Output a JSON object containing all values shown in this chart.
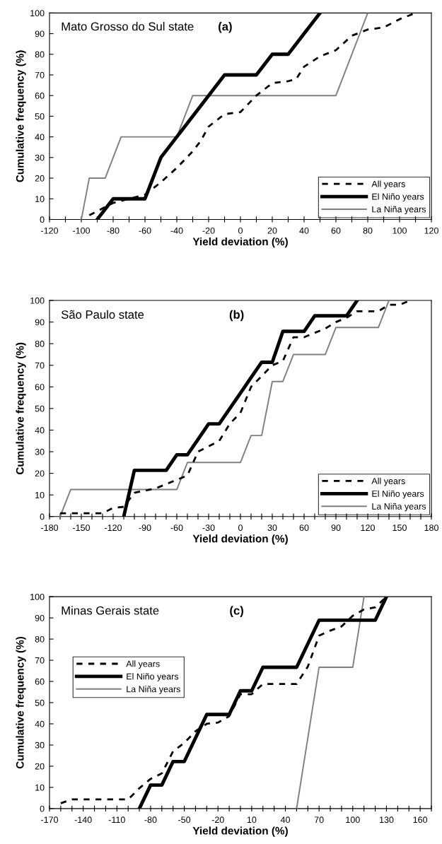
{
  "chart_data": [
    {
      "type": "line",
      "title": "Mato Grosso do Sul state",
      "annotations": [
        "(a)"
      ],
      "xlabel": "Yield deviation (%)",
      "ylabel": "Cumulative frequency (%)",
      "xlim": [
        -120,
        120
      ],
      "xticks": [
        -120,
        {
          "value": -110,
          "label": null
        },
        -100,
        {
          "value": -90,
          "label": null
        },
        -80,
        {
          "value": -70,
          "label": null
        },
        -60,
        {
          "value": -50,
          "label": null
        },
        -40,
        {
          "value": -30,
          "label": null
        },
        -20,
        {
          "value": -10,
          "label": null
        },
        0,
        {
          "value": 10,
          "label": null
        },
        20,
        {
          "value": 30,
          "label": null
        },
        40,
        {
          "value": 50,
          "label": null
        },
        60,
        {
          "value": 70,
          "label": null
        },
        80,
        {
          "value": 90,
          "label": null
        },
        100,
        {
          "value": 110,
          "label": null
        },
        120
      ],
      "ylim": [
        0,
        100
      ],
      "yticks": [
        0,
        10,
        20,
        30,
        40,
        50,
        60,
        70,
        80,
        90,
        100
      ],
      "grid": false,
      "legend": "bottom right",
      "marker": "none",
      "series": [
        {
          "name": "All years",
          "color": "#000000",
          "line_style": "dashed",
          "x": [
            -95,
            -80,
            -60,
            -50,
            -40,
            -30,
            -25,
            -20,
            -10,
            0,
            10,
            20,
            30,
            35,
            40,
            50,
            60,
            70,
            80,
            90,
            100,
            110
          ],
          "values": [
            2,
            8,
            12,
            18,
            25,
            33,
            38,
            45,
            51,
            52,
            60,
            66,
            67,
            68,
            74,
            79,
            82,
            89,
            92,
            93,
            97,
            100
          ]
        },
        {
          "name": "El Niño years",
          "color": "#000000",
          "line_style": "solid",
          "x": [
            -90,
            -80,
            -60,
            -50,
            -40,
            -10,
            10,
            20,
            30,
            40,
            50
          ],
          "values": [
            0,
            10,
            10,
            30,
            40,
            70,
            70,
            80,
            80,
            90,
            100
          ]
        },
        {
          "name": "La Niña years",
          "color": "#808080",
          "line_style": "solid",
          "x": [
            -100,
            -95,
            -85,
            -75,
            -40,
            -30,
            60,
            70,
            80
          ],
          "values": [
            0,
            20,
            20,
            40,
            40,
            60,
            60,
            80,
            100
          ]
        }
      ]
    },
    {
      "type": "line",
      "title": "São Paulo state",
      "annotations": [
        "(b)"
      ],
      "xlabel": "Yield deviation (%)",
      "ylabel": "Cumulative frequency (%)",
      "xlim": [
        -180,
        180
      ],
      "xticks": [
        -180,
        {
          "value": -170,
          "label": null
        },
        {
          "value": -160,
          "label": null
        },
        -150,
        {
          "value": -140,
          "label": null
        },
        {
          "value": -130,
          "label": null
        },
        -120,
        {
          "value": -110,
          "label": null
        },
        {
          "value": -100,
          "label": null
        },
        -90,
        {
          "value": -80,
          "label": null
        },
        {
          "value": -70,
          "label": null
        },
        -60,
        {
          "value": -50,
          "label": null
        },
        {
          "value": -40,
          "label": null
        },
        -30,
        {
          "value": -20,
          "label": null
        },
        {
          "value": -10,
          "label": null
        },
        0,
        {
          "value": 10,
          "label": null
        },
        {
          "value": 20,
          "label": null
        },
        30,
        {
          "value": 40,
          "label": null
        },
        {
          "value": 50,
          "label": null
        },
        60,
        {
          "value": 70,
          "label": null
        },
        {
          "value": 80,
          "label": null
        },
        90,
        {
          "value": 100,
          "label": null
        },
        {
          "value": 110,
          "label": null
        },
        120,
        {
          "value": 130,
          "label": null
        },
        {
          "value": 140,
          "label": null
        },
        150,
        {
          "value": 160,
          "label": null
        },
        {
          "value": 170,
          "label": null
        },
        180
      ],
      "ylim": [
        0,
        100
      ],
      "yticks": [
        0,
        10,
        20,
        30,
        40,
        50,
        60,
        70,
        80,
        90,
        100
      ],
      "grid": false,
      "legend": "bottom right",
      "marker": "none",
      "series": [
        {
          "name": "All years",
          "color": "#000000",
          "line_style": "dashed",
          "x": [
            -170,
            -130,
            -120,
            -110,
            -100,
            -80,
            -70,
            -60,
            -50,
            -40,
            -20,
            -10,
            0,
            10,
            20,
            30,
            40,
            50,
            60,
            80,
            90,
            100,
            110,
            130,
            140,
            150,
            160
          ],
          "values": [
            1.5,
            1.5,
            4,
            4.5,
            11,
            13,
            15,
            17,
            19,
            30,
            35,
            43,
            48,
            60,
            65,
            70,
            72,
            83,
            83,
            87,
            90,
            92,
            95,
            95,
            98,
            98,
            100
          ]
        },
        {
          "name": "El Niño years",
          "color": "#000000",
          "line_style": "solid",
          "x": [
            -110,
            -100,
            -70,
            -60,
            -50,
            -40,
            -30,
            -20,
            -10,
            0,
            10,
            20,
            30,
            40,
            60,
            70,
            100,
            110
          ],
          "values": [
            0,
            21.4,
            21.4,
            28.6,
            28.6,
            35.7,
            42.9,
            42.9,
            50,
            57.1,
            64.3,
            71.4,
            71.4,
            85.7,
            85.7,
            92.9,
            92.9,
            100
          ]
        },
        {
          "name": "La Niña years",
          "color": "#808080",
          "line_style": "solid",
          "x": [
            -170,
            -160,
            -60,
            -50,
            0,
            10,
            20,
            30,
            40,
            50,
            80,
            90,
            130,
            140
          ],
          "values": [
            0,
            12.5,
            12.5,
            25,
            25,
            37.5,
            37.5,
            62.5,
            62.5,
            75,
            75,
            87.5,
            87.5,
            100
          ]
        }
      ]
    },
    {
      "type": "line",
      "title": "Minas Gerais state",
      "annotations": [
        "(c)"
      ],
      "xlabel": "Yield deviation (%)",
      "ylabel": "Cumulative frequency (%)",
      "xlim": [
        -170,
        170
      ],
      "xticks": [
        -170,
        {
          "value": -160,
          "label": null
        },
        {
          "value": -150,
          "label": null
        },
        -140,
        {
          "value": -130,
          "label": null
        },
        {
          "value": -120,
          "label": null
        },
        -110,
        {
          "value": -100,
          "label": null
        },
        {
          "value": -90,
          "label": null
        },
        -80,
        {
          "value": -70,
          "label": null
        },
        {
          "value": -60,
          "label": null
        },
        -50,
        {
          "value": -40,
          "label": null
        },
        {
          "value": -30,
          "label": null
        },
        -20,
        {
          "value": -10,
          "label": null
        },
        {
          "value": 0,
          "label": null
        },
        10,
        {
          "value": 20,
          "label": null
        },
        {
          "value": 30,
          "label": null
        },
        40,
        {
          "value": 50,
          "label": null
        },
        {
          "value": 60,
          "label": null
        },
        70,
        {
          "value": 80,
          "label": null
        },
        {
          "value": 90,
          "label": null
        },
        100,
        {
          "value": 110,
          "label": null
        },
        {
          "value": 120,
          "label": null
        },
        130,
        {
          "value": 140,
          "label": null
        },
        {
          "value": 150,
          "label": null
        },
        160,
        {
          "value": 170,
          "label": null
        }
      ],
      "ylim": [
        0,
        100
      ],
      "yticks": [
        0,
        10,
        20,
        30,
        40,
        50,
        60,
        70,
        80,
        90,
        100
      ],
      "grid": false,
      "legend": "center left",
      "marker": "none",
      "series": [
        {
          "name": "All years",
          "color": "#000000",
          "line_style": "dashed",
          "x": [
            -160,
            -150,
            -100,
            -90,
            -80,
            -70,
            -60,
            -50,
            -40,
            -30,
            -20,
            -10,
            0,
            10,
            20,
            50,
            60,
            70,
            80,
            90,
            100,
            110,
            120,
            130
          ],
          "values": [
            2.5,
            4.3,
            4.3,
            9.6,
            14,
            16.6,
            27,
            31,
            36.5,
            40,
            40.6,
            43.6,
            54,
            54,
            58.8,
            58.8,
            67,
            81.6,
            84,
            86,
            91,
            94,
            95,
            100
          ]
        },
        {
          "name": "El Niño years",
          "color": "#000000",
          "line_style": "solid",
          "x": [
            -90,
            -80,
            -70,
            -60,
            -50,
            -30,
            -10,
            0,
            10,
            20,
            50,
            70,
            120,
            130
          ],
          "values": [
            0,
            11.1,
            11.1,
            22.2,
            22.2,
            44.4,
            44.4,
            55.6,
            55.6,
            66.7,
            66.7,
            88.9,
            88.9,
            100
          ]
        },
        {
          "name": "La Niña years",
          "color": "#808080",
          "line_style": "solid",
          "x": [
            50,
            70,
            100,
            110
          ],
          "values": [
            0,
            66.7,
            66.7,
            100
          ]
        }
      ]
    }
  ]
}
